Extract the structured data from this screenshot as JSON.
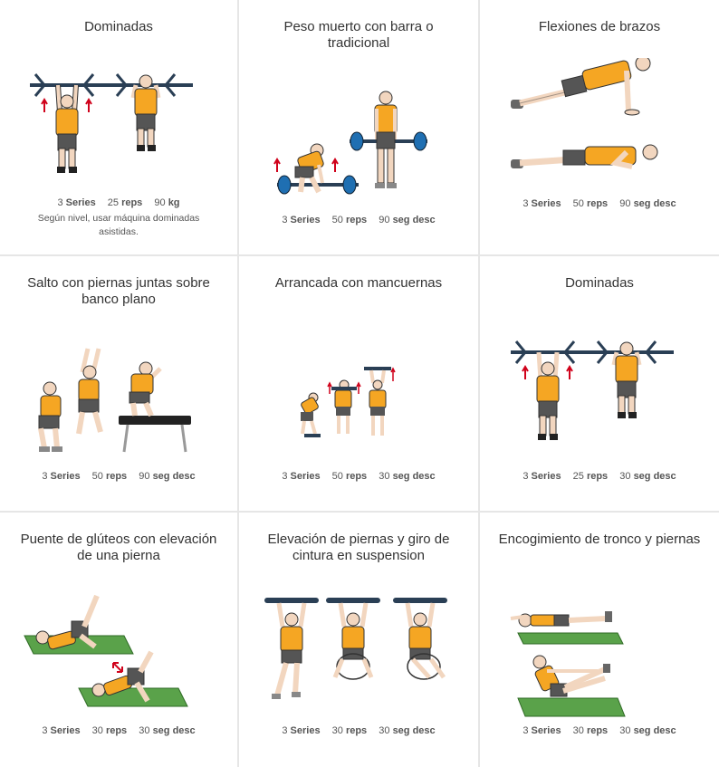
{
  "exercises": [
    {
      "title": "Dominadas",
      "series": "3",
      "series_label": "Series",
      "reps": "25",
      "reps_label": "reps",
      "third": "90",
      "third_label": "kg",
      "note": "Según nivel, usar máquina dominadas asistidas.",
      "illustration": "pull-up-illustration"
    },
    {
      "title": "Peso muerto con barra o tradicional",
      "series": "3",
      "series_label": "Series",
      "reps": "50",
      "reps_label": "reps",
      "third": "90",
      "third_label": "seg desc",
      "illustration": "deadlift-illustration"
    },
    {
      "title": "Flexiones de brazos",
      "series": "3",
      "series_label": "Series",
      "reps": "50",
      "reps_label": "reps",
      "third": "90",
      "third_label": "seg desc",
      "illustration": "push-up-illustration"
    },
    {
      "title": "Salto con piernas juntas sobre banco plano",
      "series": "3",
      "series_label": "Series",
      "reps": "50",
      "reps_label": "reps",
      "third": "90",
      "third_label": "seg desc",
      "illustration": "box-jump-illustration"
    },
    {
      "title": "Arrancada con mancuernas",
      "series": "3",
      "series_label": "Series",
      "reps": "50",
      "reps_label": "reps",
      "third": "30",
      "third_label": "seg desc",
      "illustration": "dumbbell-snatch-illustration"
    },
    {
      "title": "Dominadas",
      "series": "3",
      "series_label": "Series",
      "reps": "25",
      "reps_label": "reps",
      "third": "30",
      "third_label": "seg desc",
      "illustration": "pull-up-illustration"
    },
    {
      "title": "Puente de glúteos con elevación de una pierna",
      "series": "3",
      "series_label": "Series",
      "reps": "30",
      "reps_label": "reps",
      "third": "30",
      "third_label": "seg desc",
      "illustration": "glute-bridge-illustration"
    },
    {
      "title": "Elevación de piernas y giro de cintura en suspension",
      "series": "3",
      "series_label": "Series",
      "reps": "30",
      "reps_label": "reps",
      "third": "30",
      "third_label": "seg desc",
      "illustration": "hanging-leg-raise-illustration"
    },
    {
      "title": "Encogimiento de tronco y piernas",
      "series": "3",
      "series_label": "Series",
      "reps": "30",
      "reps_label": "reps",
      "third": "30",
      "third_label": "seg desc",
      "illustration": "v-up-illustration"
    }
  ],
  "colors": {
    "shirt": "#f5a623",
    "shorts": "#555555",
    "skin": "#f2d6bf",
    "bar": "#2a3f55",
    "plate": "#1f6fb2",
    "mat": "#5aa24a",
    "arrow": "#d0021b",
    "border": "#e6e6e6"
  }
}
